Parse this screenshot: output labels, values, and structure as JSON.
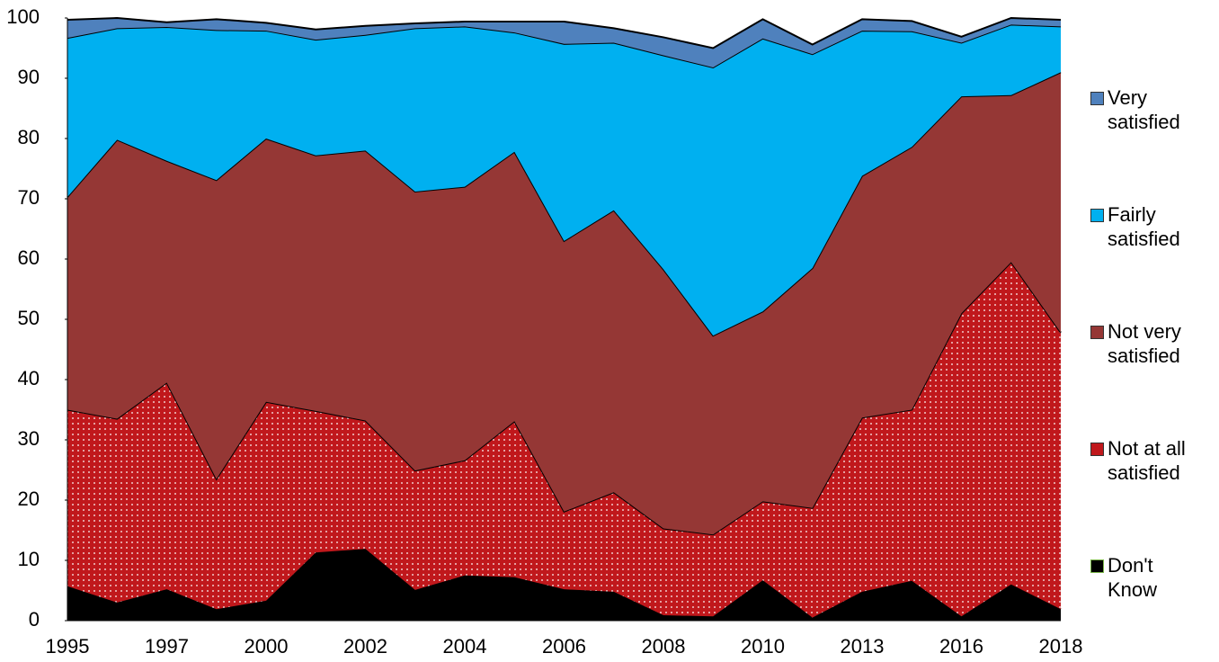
{
  "chart_data": {
    "type": "stacked-area",
    "categories": [
      "1995",
      null,
      "1997",
      null,
      "2000",
      null,
      "2002",
      null,
      "2004",
      null,
      "2006",
      null,
      "2008",
      null,
      "2010",
      null,
      "2013",
      null,
      "2016",
      null,
      "2018"
    ],
    "series": [
      {
        "name": "Don't Know",
        "color": "#000000",
        "values": [
          5.7,
          3.0,
          5.2,
          1.9,
          3.3,
          11.3,
          11.9,
          5.1,
          7.5,
          7.2,
          5.2,
          4.8,
          0.9,
          0.7,
          6.7,
          0.5,
          4.8,
          6.6,
          0.7,
          6.0,
          1.9
        ]
      },
      {
        "name": "Not at all satisfied",
        "color": "#c0181c",
        "values": [
          29.3,
          30.5,
          34.3,
          21.6,
          33.0,
          23.5,
          21.3,
          19.8,
          19.1,
          25.9,
          12.9,
          16.5,
          14.4,
          13.6,
          13.1,
          18.2,
          28.9,
          28.4,
          50.3,
          53.5,
          45.9
        ]
      },
      {
        "name": "Not very satisfied",
        "color": "#953735",
        "values": [
          35.3,
          46.3,
          36.8,
          49.6,
          43.7,
          42.4,
          44.8,
          46.3,
          45.4,
          44.7,
          44.9,
          46.8,
          43.0,
          33.0,
          31.5,
          39.8,
          40.1,
          43.6,
          36.0,
          27.7,
          43.2
        ]
      },
      {
        "name": "Fairly satisfied",
        "color": "#00b0f0",
        "values": [
          26.4,
          18.5,
          22.2,
          24.9,
          17.9,
          19.2,
          19.2,
          27.1,
          26.6,
          19.8,
          32.7,
          27.8,
          35.5,
          44.5,
          45.3,
          35.5,
          24.1,
          19.2,
          8.9,
          11.7,
          7.6
        ]
      },
      {
        "name": "Very satisfied",
        "color": "#4f81bd",
        "values": [
          3.0,
          1.7,
          0.8,
          1.8,
          1.3,
          1.7,
          1.5,
          0.8,
          0.8,
          1.8,
          3.7,
          2.4,
          3.0,
          3.2,
          3.2,
          1.6,
          1.9,
          1.7,
          1.0,
          1.1,
          1.1
        ]
      }
    ],
    "ylim": [
      0,
      100
    ],
    "yticks": [
      0,
      10,
      20,
      30,
      40,
      50,
      60,
      70,
      80,
      90,
      100
    ]
  }
}
